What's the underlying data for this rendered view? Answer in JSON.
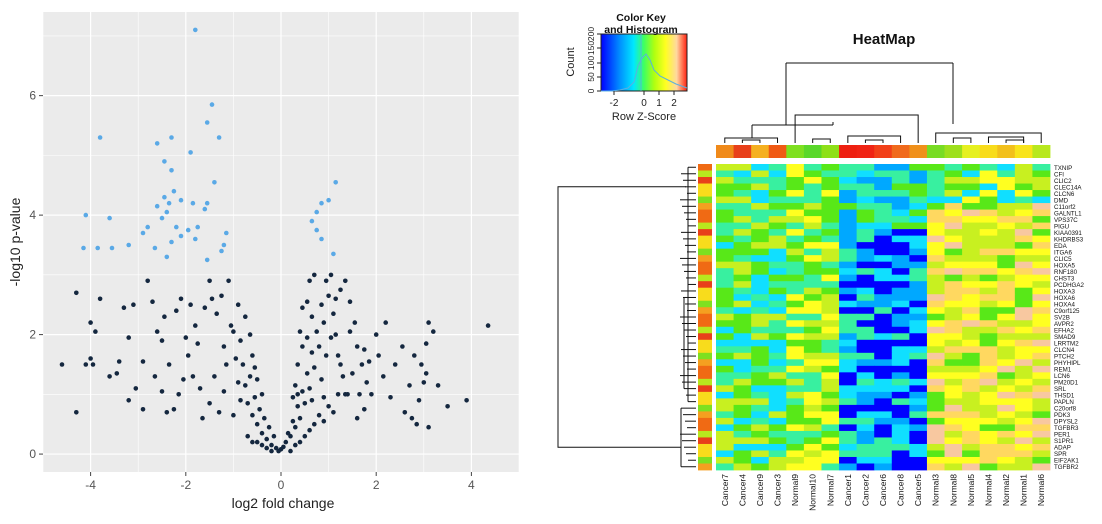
{
  "chart_data": [
    {
      "type": "scatter",
      "xlabel": "log2 fold change",
      "ylabel": "-log10 p-value",
      "xlim": [
        -5,
        5
      ],
      "ylim": [
        -0.3,
        7.4
      ],
      "x_ticks": [
        -4,
        -2,
        0,
        2,
        4
      ],
      "y_ticks": [
        0,
        2,
        4,
        6
      ],
      "x_tick_labels": [
        "-4",
        "-2",
        "0",
        "2",
        "4"
      ],
      "y_tick_labels": [
        "0",
        "2",
        "4",
        "6"
      ],
      "grid": true,
      "background": "#ebebeb",
      "series": [
        {
          "color": "#5aa9e6",
          "points": [
            [
              -1.8,
              7.1
            ],
            [
              -1.45,
              5.85
            ],
            [
              -1.55,
              5.55
            ],
            [
              -3.8,
              5.3
            ],
            [
              -2.3,
              5.3
            ],
            [
              -1.3,
              5.3
            ],
            [
              -2.6,
              5.2
            ],
            [
              -1.9,
              5.05
            ],
            [
              -2.45,
              4.9
            ],
            [
              -2.3,
              4.75
            ],
            [
              -1.4,
              4.55
            ],
            [
              -2.25,
              4.4
            ],
            [
              -2.45,
              4.3
            ],
            [
              -2.35,
              4.2
            ],
            [
              -2.6,
              4.15
            ],
            [
              -2.1,
              4.25
            ],
            [
              -1.85,
              4.2
            ],
            [
              -1.55,
              4.2
            ],
            [
              -1.6,
              4.1
            ],
            [
              -2.4,
              4.05
            ],
            [
              -4.1,
              4.0
            ],
            [
              -2.5,
              3.95
            ],
            [
              -3.6,
              3.95
            ],
            [
              -2.8,
              3.8
            ],
            [
              -2.2,
              3.8
            ],
            [
              -1.95,
              3.75
            ],
            [
              -1.75,
              3.8
            ],
            [
              -2.9,
              3.7
            ],
            [
              -2.1,
              3.65
            ],
            [
              -1.15,
              3.7
            ],
            [
              -1.8,
              3.6
            ],
            [
              -2.3,
              3.55
            ],
            [
              -3.2,
              3.5
            ],
            [
              -3.55,
              3.45
            ],
            [
              -4.15,
              3.45
            ],
            [
              -3.85,
              3.45
            ],
            [
              -2.65,
              3.45
            ],
            [
              -1.2,
              3.5
            ],
            [
              -1.25,
              3.4
            ],
            [
              -2.4,
              3.3
            ],
            [
              -1.55,
              3.25
            ],
            [
              1.15,
              4.55
            ],
            [
              1.0,
              4.25
            ],
            [
              0.85,
              4.2
            ],
            [
              0.75,
              4.05
            ],
            [
              0.65,
              3.9
            ],
            [
              0.75,
              3.75
            ],
            [
              0.85,
              3.6
            ],
            [
              1.1,
              3.35
            ]
          ]
        },
        {
          "color": "#14273f",
          "points": [
            [
              -3.95,
              1.5
            ],
            [
              -4.3,
              0.7
            ],
            [
              -4.3,
              2.7
            ],
            [
              -3.8,
              2.6
            ],
            [
              -4.0,
              2.2
            ],
            [
              -3.9,
              2.05
            ],
            [
              -4.6,
              1.5
            ],
            [
              -4.1,
              1.5
            ],
            [
              -3.45,
              1.35
            ],
            [
              -4.0,
              1.6
            ],
            [
              -3.1,
              2.5
            ],
            [
              -3.3,
              2.45
            ],
            [
              -2.8,
              2.9
            ],
            [
              -2.7,
              2.55
            ],
            [
              -3.6,
              1.3
            ],
            [
              -3.4,
              1.55
            ],
            [
              -3.05,
              1.1
            ],
            [
              -3.2,
              0.9
            ],
            [
              -2.9,
              0.75
            ],
            [
              -2.5,
              1.05
            ],
            [
              -2.4,
              0.7
            ],
            [
              -2.35,
              1.5
            ],
            [
              -2.5,
              1.9
            ],
            [
              -2.6,
              2.05
            ],
            [
              -2.45,
              2.3
            ],
            [
              -2.2,
              2.4
            ],
            [
              -2.1,
              2.6
            ],
            [
              -2.0,
              1.95
            ],
            [
              -1.8,
              2.15
            ],
            [
              -1.6,
              2.45
            ],
            [
              -1.5,
              2.9
            ],
            [
              -1.45,
              2.6
            ],
            [
              -1.35,
              2.35
            ],
            [
              -1.1,
              2.9
            ],
            [
              -1.05,
              2.15
            ],
            [
              -1.15,
              1.5
            ],
            [
              -1.2,
              1.05
            ],
            [
              -1.3,
              0.7
            ],
            [
              -1.5,
              0.85
            ],
            [
              -1.7,
              1.1
            ],
            [
              -1.85,
              1.3
            ],
            [
              -1.95,
              1.65
            ],
            [
              -2.15,
              1.0
            ],
            [
              -2.25,
              0.75
            ],
            [
              -0.9,
              2.5
            ],
            [
              -0.85,
              1.9
            ],
            [
              -0.8,
              1.5
            ],
            [
              -0.75,
              1.15
            ],
            [
              -0.7,
              0.85
            ],
            [
              -0.65,
              1.3
            ],
            [
              -0.6,
              0.65
            ],
            [
              -0.55,
              0.95
            ],
            [
              -0.5,
              0.5
            ],
            [
              -0.45,
              0.75
            ],
            [
              -0.4,
              0.35
            ],
            [
              -0.35,
              0.6
            ],
            [
              -0.3,
              0.25
            ],
            [
              -0.25,
              0.45
            ],
            [
              -0.2,
              0.15
            ],
            [
              -0.15,
              0.3
            ],
            [
              -0.1,
              0.1
            ],
            [
              -0.05,
              0.05
            ],
            [
              0.0,
              0.08
            ],
            [
              0.05,
              0.12
            ],
            [
              0.1,
              0.2
            ],
            [
              0.15,
              0.35
            ],
            [
              0.2,
              0.3
            ],
            [
              0.25,
              0.55
            ],
            [
              0.3,
              0.45
            ],
            [
              0.35,
              0.8
            ],
            [
              0.4,
              0.6
            ],
            [
              0.45,
              1.05
            ],
            [
              0.5,
              0.85
            ],
            [
              0.55,
              1.35
            ],
            [
              0.6,
              1.1
            ],
            [
              0.65,
              1.7
            ],
            [
              0.7,
              1.45
            ],
            [
              0.75,
              2.05
            ],
            [
              0.8,
              1.8
            ],
            [
              0.85,
              2.5
            ],
            [
              0.9,
              2.2
            ],
            [
              0.95,
              2.9
            ],
            [
              1.0,
              2.65
            ],
            [
              1.05,
              3.0
            ],
            [
              1.1,
              2.35
            ],
            [
              1.15,
              2.0
            ],
            [
              1.2,
              1.65
            ],
            [
              0.4,
              2.05
            ],
            [
              0.35,
              1.5
            ],
            [
              0.3,
              1.15
            ],
            [
              0.25,
              0.95
            ],
            [
              0.55,
              2.55
            ],
            [
              0.6,
              2.9
            ],
            [
              0.7,
              3.0
            ],
            [
              0.45,
              2.45
            ],
            [
              0.65,
              2.3
            ],
            [
              0.85,
              1.25
            ],
            [
              0.9,
              0.95
            ],
            [
              1.25,
              2.75
            ],
            [
              1.35,
              2.9
            ],
            [
              1.45,
              2.55
            ],
            [
              1.55,
              2.2
            ],
            [
              1.6,
              1.8
            ],
            [
              1.7,
              1.5
            ],
            [
              1.8,
              1.2
            ],
            [
              1.9,
              1.0
            ],
            [
              1.75,
              0.75
            ],
            [
              1.6,
              0.6
            ],
            [
              1.4,
              1.0
            ],
            [
              1.3,
              1.3
            ],
            [
              2.0,
              2.0
            ],
            [
              2.05,
              1.65
            ],
            [
              2.15,
              1.3
            ],
            [
              2.2,
              2.2
            ],
            [
              2.3,
              0.95
            ],
            [
              2.4,
              1.5
            ],
            [
              2.55,
              1.8
            ],
            [
              2.6,
              0.7
            ],
            [
              2.7,
              1.15
            ],
            [
              2.75,
              0.6
            ],
            [
              2.85,
              0.5
            ],
            [
              2.9,
              0.9
            ],
            [
              3.0,
              1.2
            ],
            [
              3.05,
              1.35
            ],
            [
              3.1,
              0.45
            ],
            [
              3.3,
              1.15
            ],
            [
              3.2,
              2.05
            ],
            [
              3.05,
              1.85
            ],
            [
              3.1,
              2.2
            ],
            [
              2.8,
              1.65
            ],
            [
              2.95,
              1.5
            ],
            [
              3.5,
              0.8
            ],
            [
              3.9,
              0.9
            ],
            [
              4.35,
              2.15
            ],
            [
              1.85,
              1.55
            ],
            [
              -1.0,
              2.05
            ],
            [
              -0.95,
              1.6
            ],
            [
              -0.9,
              1.2
            ],
            [
              -0.85,
              0.9
            ],
            [
              -1.0,
              0.65
            ],
            [
              -0.7,
              0.3
            ],
            [
              -0.6,
              0.2
            ],
            [
              -0.5,
              0.2
            ],
            [
              -0.4,
              0.15
            ],
            [
              -0.3,
              0.1
            ],
            [
              -0.2,
              0.05
            ],
            [
              0.2,
              0.05
            ],
            [
              0.3,
              0.15
            ],
            [
              0.4,
              0.2
            ],
            [
              0.5,
              0.3
            ],
            [
              0.6,
              0.4
            ],
            [
              0.7,
              0.5
            ],
            [
              0.8,
              0.65
            ],
            [
              0.9,
              0.55
            ],
            [
              1.0,
              0.8
            ],
            [
              1.1,
              0.7
            ],
            [
              1.2,
              1.0
            ],
            [
              -1.2,
              1.8
            ],
            [
              -1.4,
              1.3
            ],
            [
              -1.65,
              0.6
            ],
            [
              -1.75,
              1.85
            ],
            [
              -2.05,
              1.25
            ],
            [
              -2.9,
              1.55
            ],
            [
              -3.2,
              1.95
            ],
            [
              -2.65,
              1.3
            ],
            [
              -1.9,
              2.5
            ],
            [
              -1.25,
              2.65
            ],
            [
              0.95,
              1.65
            ],
            [
              1.05,
              1.95
            ],
            [
              1.15,
              2.6
            ],
            [
              1.25,
              1.5
            ],
            [
              1.35,
              1.0
            ],
            [
              1.5,
              1.35
            ],
            [
              1.65,
              1.0
            ],
            [
              1.75,
              1.75
            ],
            [
              1.45,
              2.05
            ],
            [
              0.45,
              1.8
            ],
            [
              0.55,
              1.95
            ],
            [
              0.65,
              0.9
            ],
            [
              0.35,
              1.0
            ],
            [
              -0.4,
              1.0
            ],
            [
              -0.5,
              1.25
            ],
            [
              -0.6,
              1.65
            ],
            [
              -0.65,
              2.0
            ],
            [
              -0.75,
              2.3
            ],
            [
              -0.55,
              1.45
            ]
          ]
        }
      ]
    },
    {
      "type": "heatmap",
      "title": "HeatMap",
      "columns": [
        "Cancer7",
        "Cancer4",
        "Cancer9",
        "Cancer3",
        "Normal9",
        "Normal10",
        "Normal7",
        "Cancer1",
        "Cancer2",
        "Cancer6",
        "Cancer8",
        "Cancer5",
        "Normal3",
        "Normal8",
        "Normal5",
        "Normal4",
        "Normal2",
        "Normal1",
        "Normal6"
      ],
      "rows": [
        "TXNIP",
        "CFI",
        "CLIC2",
        "CLEC14A",
        "CLCN6",
        "DMD",
        "C11orf2",
        "GALNTL1",
        "VPS37C",
        "PIGU",
        "KIAA0391",
        "KHDRBS3",
        "EDA",
        "ITGA6",
        "CLIC5",
        "HOXA5",
        "RNF180",
        "CHST3",
        "PCDHGA2",
        "HOXA3",
        "HOXA6",
        "HOXA4",
        "C9orf125",
        "SV2B",
        "AVPR2",
        "EFHA2",
        "SMAD9",
        "LRRTM2",
        "CLCN4",
        "PTCH2",
        "PHYHIPL",
        "REM1",
        "LCN6",
        "PM20D1",
        "SRL",
        "THSD1",
        "PAPLN",
        "C20orf8",
        "PDK3",
        "DPYSL2",
        "TGFBR3",
        "PER1",
        "S1PR1",
        "ADAP",
        "SPR",
        "EIF2AK1",
        "TGFBR2"
      ],
      "color_key": {
        "title": "Color Key and Histogram",
        "xlabel": "Row Z-Score",
        "ylabel": "Count",
        "x_ticks": [
          "-2",
          "0",
          "1",
          "2"
        ],
        "y_ticks": [
          "0",
          "50",
          "100",
          "150",
          "200"
        ]
      },
      "column_side_colors": [
        "#f08a1a",
        "#e8401a",
        "#f5b020",
        "#f05a14",
        "#7ee020",
        "#5ad82a",
        "#8ee018",
        "#ee2010",
        "#f02414",
        "#f24018",
        "#f06a1c",
        "#f0901a",
        "#78dc24",
        "#9ee01c",
        "#e6f020",
        "#f8dc1c",
        "#f2c01c",
        "#f8e41c",
        "#b8e81e"
      ],
      "palette": [
        "#0000ff",
        "#00a8ff",
        "#10dfff",
        "#38f0a0",
        "#58e818",
        "#c8f020",
        "#ffff20",
        "#ffd860",
        "#f8c8a0",
        "#ff3020"
      ],
      "scale": "Row Z-Score"
    }
  ]
}
